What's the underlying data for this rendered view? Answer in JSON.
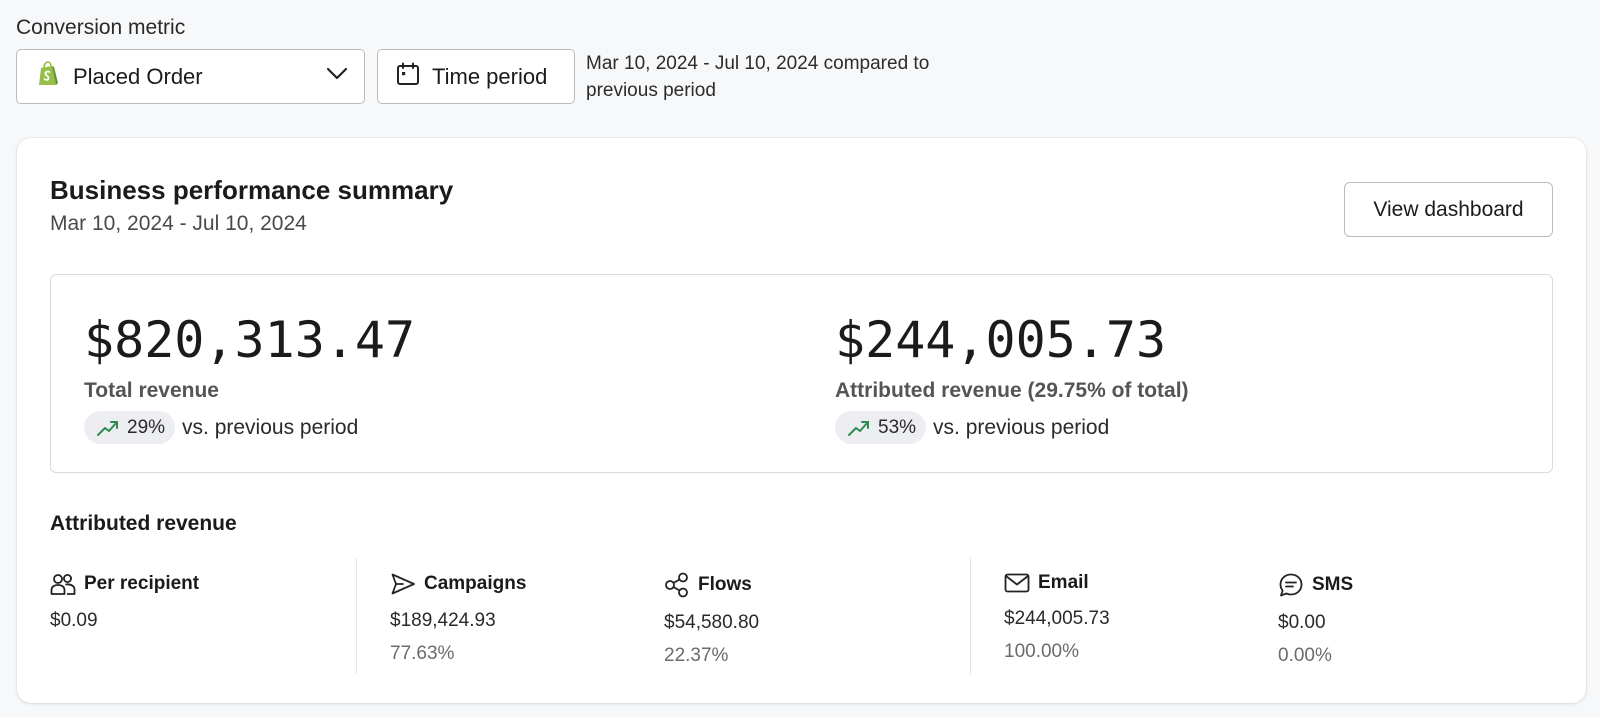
{
  "conversion_metric": {
    "label": "Conversion metric",
    "selected": "Placed Order",
    "time_button": "Time period",
    "period_text": "Mar 10, 2024 - Jul 10, 2024 compared to previous period"
  },
  "summary": {
    "title": "Business performance summary",
    "date_range": "Mar 10, 2024 - Jul 10, 2024",
    "view_button": "View dashboard",
    "total": {
      "value": "$820,313.47",
      "label": "Total revenue",
      "change": "29%",
      "vs": "vs. previous period"
    },
    "attributed": {
      "value": "$244,005.73",
      "label": "Attributed revenue (29.75% of total)",
      "change": "53%",
      "vs": "vs. previous period"
    }
  },
  "attributed_section": {
    "title": "Attributed revenue",
    "metrics": [
      {
        "name": "Per recipient",
        "icon": "users-icon",
        "value": "$0.09",
        "percent": ""
      },
      {
        "name": "Campaigns",
        "icon": "send-icon",
        "value": "$189,424.93",
        "percent": "77.63%"
      },
      {
        "name": "Flows",
        "icon": "flow-icon",
        "value": "$54,580.80",
        "percent": "22.37%"
      },
      {
        "name": "Email",
        "icon": "mail-icon",
        "value": "$244,005.73",
        "percent": "100.00%"
      },
      {
        "name": "SMS",
        "icon": "sms-icon",
        "value": "$0.00",
        "percent": "0.00%"
      }
    ]
  },
  "colors": {
    "trend_up": "#2e8a4f",
    "shopify_green": "#95bf47"
  }
}
